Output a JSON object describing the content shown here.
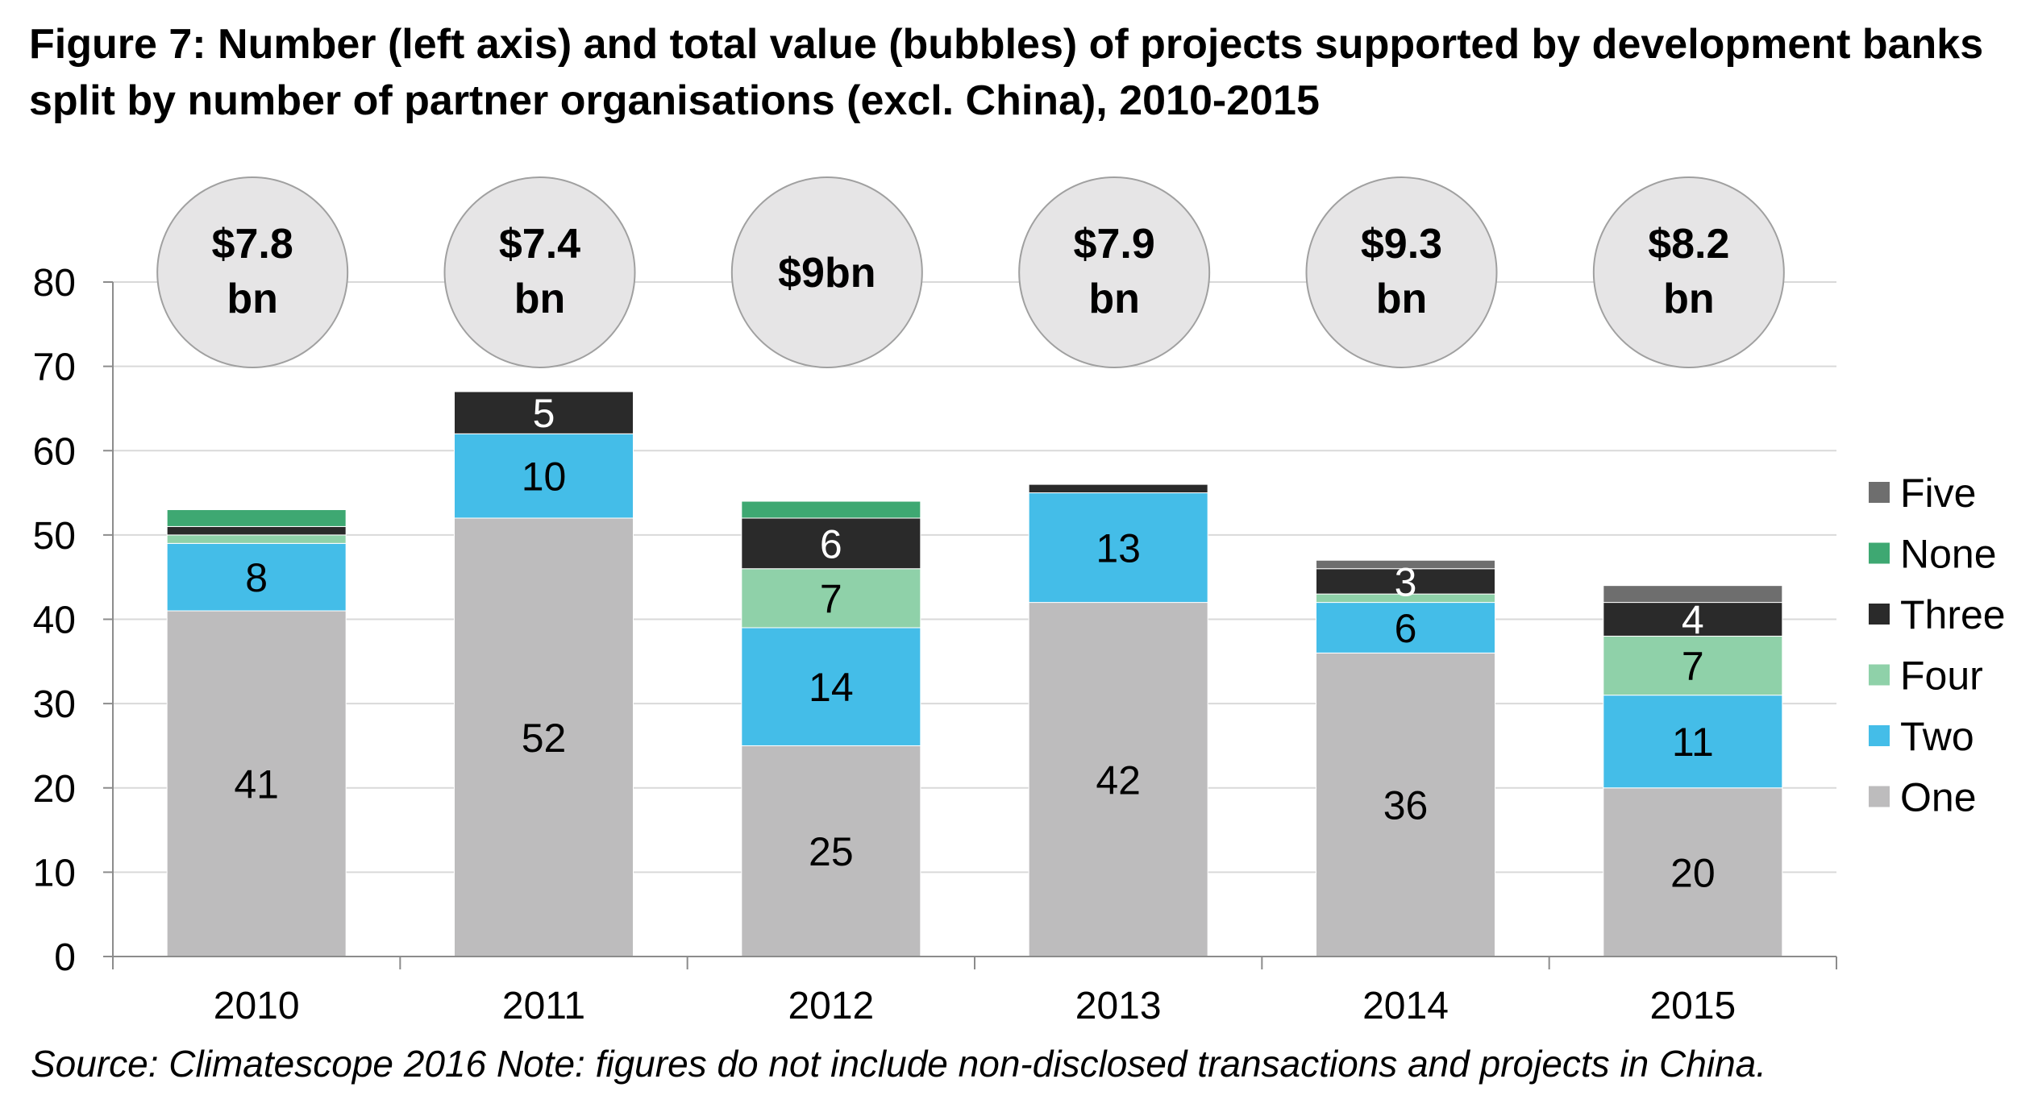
{
  "chart_data": {
    "type": "bar",
    "stacked": true,
    "title": "Figure 7: Number (left axis) and total value (bubbles) of projects supported by development banks split by number of partner organisations (excl. China), 2010-2015",
    "source": "Source: Climatescope 2016 Note: figures do not include non-disclosed transactions and projects in China.",
    "categories": [
      "2010",
      "2011",
      "2012",
      "2013",
      "2014",
      "2015"
    ],
    "ylim": [
      0,
      80
    ],
    "yticks": [
      0,
      10,
      20,
      30,
      40,
      50,
      60,
      70,
      80
    ],
    "grid": true,
    "legend_position": "right",
    "series": [
      {
        "name": "One",
        "color": "#bdbcbd",
        "values": [
          41,
          52,
          25,
          42,
          36,
          20
        ],
        "labels": [
          "41",
          "52",
          "25",
          "42",
          "36",
          "20"
        ]
      },
      {
        "name": "Two",
        "color": "#44bde8",
        "values": [
          8,
          10,
          14,
          13,
          6,
          11
        ],
        "labels": [
          "8",
          "10",
          "14",
          "13",
          "6",
          "11"
        ]
      },
      {
        "name": "Four",
        "color": "#8fd1a9",
        "values": [
          1,
          0,
          7,
          0,
          1,
          7
        ],
        "labels": [
          "",
          "",
          "7",
          "",
          "",
          "7"
        ]
      },
      {
        "name": "Three",
        "color": "#2a2a2a",
        "values": [
          1,
          5,
          6,
          1,
          3,
          4
        ],
        "labels": [
          "",
          "5",
          "6",
          "",
          "3",
          "4"
        ]
      },
      {
        "name": "None",
        "color": "#3ea872",
        "values": [
          2,
          0,
          2,
          0,
          0,
          0
        ],
        "labels": [
          "",
          "",
          "",
          "",
          "",
          ""
        ]
      },
      {
        "name": "Five",
        "color": "#6e6e6e",
        "values": [
          0,
          0,
          0,
          0,
          1,
          2
        ],
        "labels": [
          "",
          "",
          "",
          "",
          "",
          ""
        ]
      }
    ],
    "legend_order": [
      "Five",
      "None",
      "Three",
      "Four",
      "Two",
      "One"
    ],
    "bubbles": [
      {
        "line1": "$7.8",
        "line2": "bn"
      },
      {
        "line1": "$7.4",
        "line2": "bn"
      },
      {
        "line1": "$9bn",
        "line2": ""
      },
      {
        "line1": "$7.9",
        "line2": "bn"
      },
      {
        "line1": "$9.3",
        "line2": "bn"
      },
      {
        "line1": "$8.2",
        "line2": "bn"
      }
    ],
    "bubble_fill": "#e6e5e6",
    "bubble_stroke": "#a0a0a0"
  }
}
